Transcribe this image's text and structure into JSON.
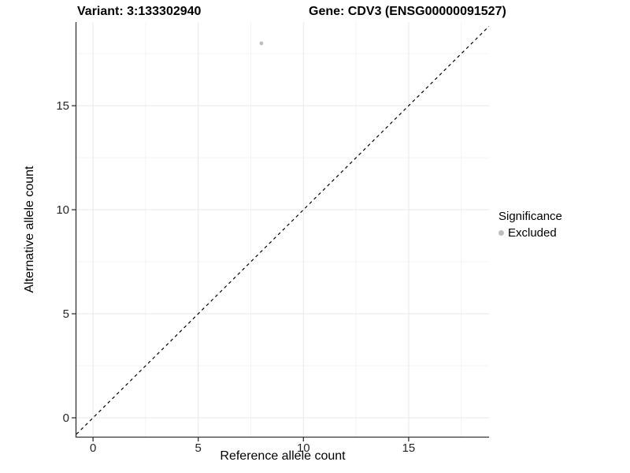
{
  "title": {
    "variant": "Variant: 3:133302940",
    "gene": "Gene: CDV3 (ENSG00000091527)"
  },
  "chart_data": {
    "type": "scatter",
    "xlabel": "Reference allele count",
    "ylabel": "Alternative allele count",
    "xlim": [
      -0.79,
      18.82
    ],
    "ylim": [
      -0.91,
      19.02
    ],
    "x_ticks": [
      0,
      5,
      10,
      15
    ],
    "y_ticks": [
      0,
      5,
      10,
      15
    ],
    "minor_ticks": [
      2.5,
      7.5,
      12.5,
      17.5
    ],
    "grid": "major and minor, light gray on white",
    "points": [
      {
        "x": 8,
        "y": 18,
        "series": "Excluded"
      }
    ],
    "reference_line": {
      "type": "identity y=x",
      "style": "dashed",
      "color": "#000000"
    },
    "legend": {
      "title": "Significance",
      "position": "right",
      "items": [
        {
          "label": "Excluded",
          "color": "#bdbdbd"
        }
      ]
    }
  },
  "colors": {
    "background": "#ffffff",
    "axis_line": "#333333",
    "tick_label": "#262626",
    "grid_major": "#e8e8e8",
    "grid_minor": "#f3f3f3",
    "point_excluded": "#bdbdbd"
  }
}
